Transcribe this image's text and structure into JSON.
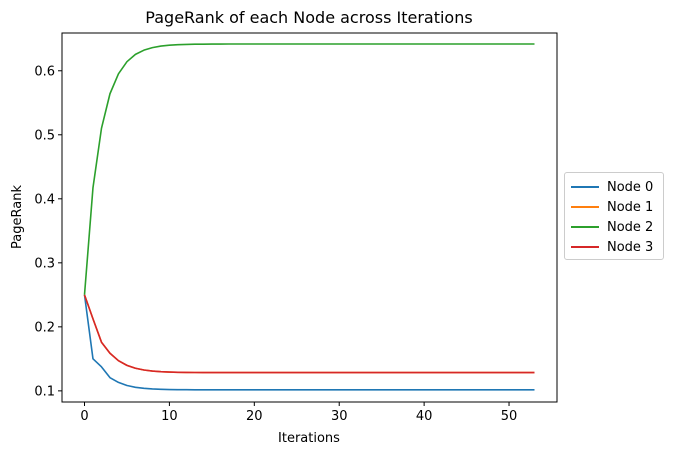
{
  "chart_data": {
    "type": "line",
    "title": "PageRank of each Node across Iterations",
    "xlabel": "Iterations",
    "ylabel": "PageRank",
    "xlim": [
      -2.65,
      55.65
    ],
    "ylim": [
      0.0826,
      0.659
    ],
    "xticks": [
      0,
      10,
      20,
      30,
      40,
      50
    ],
    "yticks": [
      0.1,
      0.2,
      0.3,
      0.4,
      0.5,
      0.6
    ],
    "ytick_labels": [
      "0.1",
      "0.2",
      "0.3",
      "0.4",
      "0.5",
      "0.6"
    ],
    "x": [
      0,
      1,
      2,
      3,
      4,
      5,
      6,
      7,
      8,
      9,
      10,
      11,
      12,
      13,
      14,
      15,
      16,
      17,
      18,
      19,
      20,
      21,
      22,
      23,
      24,
      25,
      26,
      27,
      28,
      29,
      30,
      31,
      32,
      33,
      34,
      35,
      36,
      37,
      38,
      39,
      40,
      41,
      42,
      43,
      44,
      45,
      46,
      47,
      48,
      49,
      50,
      51,
      52,
      53
    ],
    "grid": false,
    "legend_placement": "center-right outside",
    "series": [
      {
        "name": "Node 0",
        "color": "#1f77b4",
        "values": [
          0.25,
          0.15,
          0.1375,
          0.1206,
          0.1132,
          0.1084,
          0.1056,
          0.104,
          0.103,
          0.1024,
          0.1021,
          0.1019,
          0.1018,
          0.1017,
          0.1017,
          0.1016,
          0.1016,
          0.1016,
          0.1016,
          0.1016,
          0.1016,
          0.1016,
          0.1016,
          0.1016,
          0.1016,
          0.1016,
          0.1016,
          0.1016,
          0.1016,
          0.1016,
          0.1016,
          0.1016,
          0.1016,
          0.1016,
          0.1016,
          0.1016,
          0.1016,
          0.1016,
          0.1016,
          0.1016,
          0.1016,
          0.1016,
          0.1016,
          0.1016,
          0.1016,
          0.1016,
          0.1016,
          0.1016,
          0.1016,
          0.1016,
          0.1016,
          0.1016,
          0.1016,
          0.1016
        ]
      },
      {
        "name": "Node 1",
        "color": "#ff7f0e",
        "values": [
          0.25,
          0.2125,
          0.176,
          0.1588,
          0.1471,
          0.1398,
          0.1353,
          0.1326,
          0.1309,
          0.1299,
          0.1293,
          0.129,
          0.1288,
          0.1287,
          0.1286,
          0.1286,
          0.1286,
          0.1286,
          0.1286,
          0.1286,
          0.1286,
          0.1286,
          0.1286,
          0.1286,
          0.1286,
          0.1286,
          0.1286,
          0.1286,
          0.1286,
          0.1286,
          0.1286,
          0.1286,
          0.1286,
          0.1286,
          0.1286,
          0.1286,
          0.1286,
          0.1286,
          0.1286,
          0.1286,
          0.1286,
          0.1286,
          0.1286,
          0.1286,
          0.1286,
          0.1286,
          0.1286,
          0.1286,
          0.1286,
          0.1286,
          0.1286,
          0.1286,
          0.1286,
          0.1286
        ]
      },
      {
        "name": "Node 2",
        "color": "#2ca02c",
        "values": [
          0.25,
          0.4175,
          0.5101,
          0.5641,
          0.5953,
          0.6142,
          0.6256,
          0.6322,
          0.6362,
          0.6386,
          0.64,
          0.6408,
          0.6412,
          0.6415,
          0.6416,
          0.6417,
          0.6417,
          0.6418,
          0.6418,
          0.6418,
          0.6418,
          0.6418,
          0.6418,
          0.6418,
          0.6418,
          0.6418,
          0.6418,
          0.6418,
          0.6418,
          0.6418,
          0.6418,
          0.6418,
          0.6418,
          0.6418,
          0.6418,
          0.6418,
          0.6418,
          0.6418,
          0.6418,
          0.6418,
          0.6418,
          0.6418,
          0.6418,
          0.6418,
          0.6418,
          0.6418,
          0.6418,
          0.6418,
          0.6418,
          0.6418,
          0.6418,
          0.6418,
          0.6418,
          0.6418
        ]
      },
      {
        "name": "Node 3",
        "color": "#d62728",
        "values": [
          0.25,
          0.2125,
          0.176,
          0.1588,
          0.1471,
          0.1398,
          0.1353,
          0.1326,
          0.1309,
          0.1299,
          0.1293,
          0.129,
          0.1288,
          0.1287,
          0.1286,
          0.1286,
          0.1286,
          0.1286,
          0.1286,
          0.1286,
          0.1286,
          0.1286,
          0.1286,
          0.1286,
          0.1286,
          0.1286,
          0.1286,
          0.1286,
          0.1286,
          0.1286,
          0.1286,
          0.1286,
          0.1286,
          0.1286,
          0.1286,
          0.1286,
          0.1286,
          0.1286,
          0.1286,
          0.1286,
          0.1286,
          0.1286,
          0.1286,
          0.1286,
          0.1286,
          0.1286,
          0.1286,
          0.1286,
          0.1286,
          0.1286,
          0.1286,
          0.1286,
          0.1286,
          0.1286
        ]
      }
    ]
  }
}
